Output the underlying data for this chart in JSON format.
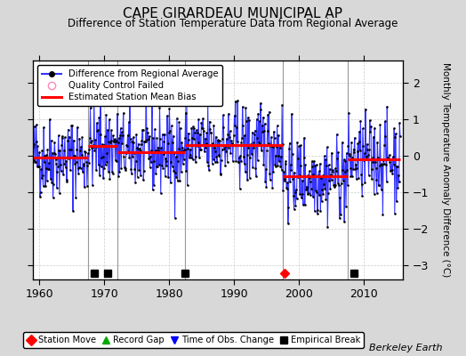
{
  "title": "CAPE GIRARDEAU MUNICIPAL AP",
  "subtitle": "Difference of Station Temperature Data from Regional Average",
  "ylabel": "Monthly Temperature Anomaly Difference (°C)",
  "credit": "Berkeley Earth",
  "background_color": "#d8d8d8",
  "plot_bg_color": "#ffffff",
  "xlim": [
    1959.0,
    2016.0
  ],
  "ylim": [
    -3.4,
    2.6
  ],
  "yticks": [
    -3,
    -2,
    -1,
    0,
    1,
    2
  ],
  "xticks": [
    1960,
    1970,
    1980,
    1990,
    2000,
    2010
  ],
  "seed": 42,
  "segments": [
    {
      "start": 1959.0,
      "end": 1967.5,
      "bias": -0.05
    },
    {
      "start": 1967.5,
      "end": 1972.0,
      "bias": 0.25
    },
    {
      "start": 1972.0,
      "end": 1982.5,
      "bias": 0.1
    },
    {
      "start": 1982.5,
      "end": 1997.5,
      "bias": 0.28
    },
    {
      "start": 1997.5,
      "end": 2007.5,
      "bias": -0.58
    },
    {
      "start": 2007.5,
      "end": 2015.5,
      "bias": -0.1
    }
  ],
  "vertical_lines": [
    1967.5,
    1972.0,
    1982.5,
    1997.5,
    2007.5
  ],
  "empirical_breaks": [
    1968.5,
    1970.5,
    1982.5,
    2008.5
  ],
  "station_moves": [
    1997.8
  ],
  "time_obs_changes": [],
  "record_gaps": [],
  "noise_std": 0.56
}
